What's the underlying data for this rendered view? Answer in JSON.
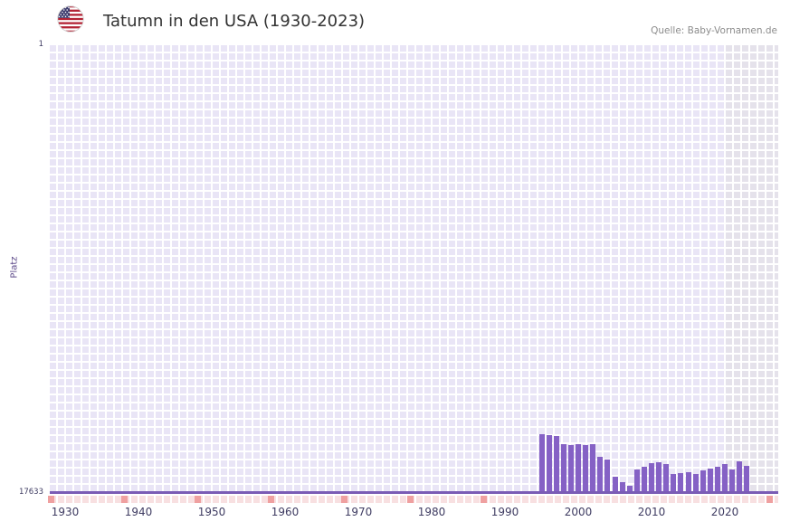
{
  "header": {
    "title": "Tatumn in den USA (1930-2023)",
    "source": "Quelle: Baby-Vornamen.de",
    "flag_icon": "us-flag-icon"
  },
  "chart_data": {
    "type": "bar",
    "title": "Tatumn in den USA (1930-2023)",
    "ylabel": "Platz",
    "xlabel": "",
    "y_axis": {
      "min": 1,
      "max": 17633,
      "inverted": true,
      "top_tick_label": "1",
      "bottom_tick_label": "17633"
    },
    "x_axis": {
      "range": [
        1930,
        2023
      ],
      "ticks": [
        1930,
        1940,
        1950,
        1960,
        1970,
        1980,
        1990,
        2000,
        2010,
        2020
      ]
    },
    "grid": true,
    "legend": false,
    "recent_band_start_year": 2021,
    "axis_strip_marker_years": [
      1928,
      1938,
      1948,
      1958,
      1968,
      1977,
      1987,
      2026
    ],
    "series": [
      {
        "name": "Tatumn",
        "years": [
          1995,
          1996,
          1997,
          1998,
          1999,
          2000,
          2001,
          2002,
          2003,
          2004,
          2005,
          2006,
          2007,
          2008,
          2009,
          2010,
          2011,
          2012,
          2013,
          2014,
          2015,
          2016,
          2017,
          2018,
          2019,
          2020,
          2021,
          2022,
          2023
        ],
        "ranks": [
          15300,
          15350,
          15400,
          15700,
          15750,
          15700,
          15750,
          15700,
          16200,
          16300,
          17000,
          17200,
          17350,
          16700,
          16600,
          16450,
          16425,
          16500,
          16900,
          16850,
          16800,
          16880,
          16740,
          16670,
          16600,
          16500,
          16700,
          16390,
          16570
        ]
      }
    ],
    "colors": {
      "bar": "#8561c5",
      "axis": "#7a5cb5",
      "grid_cell": "#e9e5f6",
      "band_cell": "#e5e2eb",
      "strip_bg": "#f8e0e1",
      "strip_marker": "#efa0a0",
      "tick_text": "#3f3c62",
      "title_text": "#333333",
      "source_text": "#8c8c8c",
      "ylabel_text": "#5e4b8b"
    }
  }
}
